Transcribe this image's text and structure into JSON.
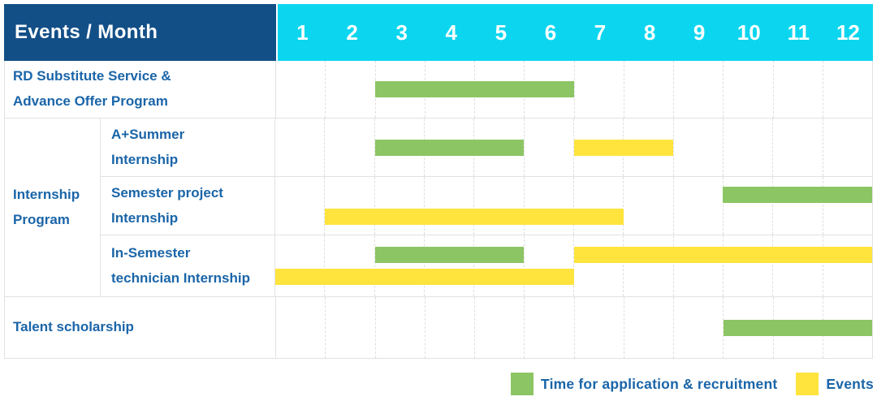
{
  "header": {
    "corner_label": "Events / Month",
    "months": [
      "1",
      "2",
      "3",
      "4",
      "5",
      "6",
      "7",
      "8",
      "9",
      "10",
      "11",
      "12"
    ]
  },
  "colors": {
    "header_bg": "#134f87",
    "months_bg": "#0cd6ef",
    "label_text": "#1a65a8",
    "recruitment": "#8cc563",
    "event": "#ffe43d",
    "table_border": "#e2e2e2",
    "grid_dash": "#dedede"
  },
  "chart_data": {
    "type": "bar",
    "subtype": "gantt-schedule",
    "title": "Events / Month",
    "x_categories": [
      "1",
      "2",
      "3",
      "4",
      "5",
      "6",
      "7",
      "8",
      "9",
      "10",
      "11",
      "12"
    ],
    "x_range": [
      1,
      12
    ],
    "grid": true,
    "legend_position": "bottom-right",
    "rows": [
      {
        "label": "RD Substitute Service &\nAdvance Offer Program",
        "lines": [
          [
            {
              "kind": "recruitment",
              "start_month": 3,
              "end_month": 6
            }
          ]
        ]
      },
      {
        "group_label": "Internship\nProgram",
        "children": [
          {
            "label": "A+Summer\nInternship",
            "lines": [
              [
                {
                  "kind": "recruitment",
                  "start_month": 3,
                  "end_month": 5
                },
                {
                  "kind": "event",
                  "start_month": 7,
                  "end_month": 8
                }
              ]
            ]
          },
          {
            "label": "Semester project\nInternship",
            "lines": [
              [
                {
                  "kind": "recruitment",
                  "start_month": 10,
                  "end_month": 12
                }
              ],
              [
                {
                  "kind": "event",
                  "start_month": 2,
                  "end_month": 7
                }
              ]
            ]
          },
          {
            "label": "In-Semester\ntechnician Internship",
            "lines": [
              [
                {
                  "kind": "recruitment",
                  "start_month": 3,
                  "end_month": 5
                },
                {
                  "kind": "event",
                  "start_month": 7,
                  "end_month": 12
                }
              ],
              [
                {
                  "kind": "event",
                  "start_month": 1,
                  "end_month": 6
                }
              ]
            ]
          }
        ]
      },
      {
        "label": "Talent scholarship",
        "lines": [
          [
            {
              "kind": "recruitment",
              "start_month": 10,
              "end_month": 12
            }
          ]
        ]
      }
    ],
    "legend": {
      "items": [
        {
          "color_key": "recruitment",
          "label": "Time for application & recruitment"
        },
        {
          "color_key": "event",
          "label": "Events"
        }
      ]
    }
  }
}
